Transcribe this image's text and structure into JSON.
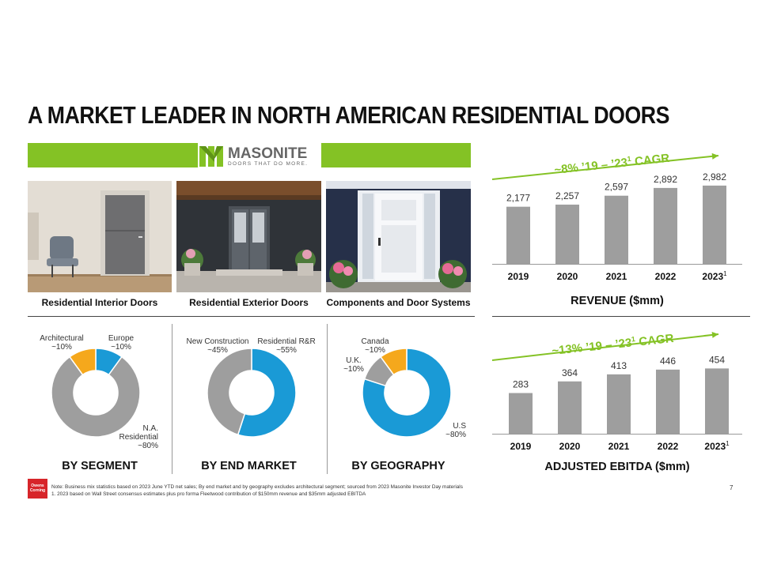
{
  "title": "A MARKET LEADER IN NORTH AMERICAN RESIDENTIAL DOORS",
  "brand": {
    "name": "MASONITE",
    "tagline": "DOORS THAT DO MORE.",
    "accent": "#84c225"
  },
  "products": [
    {
      "label": "Residential Interior Doors"
    },
    {
      "label": "Residential Exterior Doors"
    },
    {
      "label": "Components and Door Systems"
    }
  ],
  "segment": {
    "title": "BY SEGMENT",
    "labels": [
      {
        "name": "Architectural",
        "value": "~10%"
      },
      {
        "name": "Europe",
        "value": "~10%"
      },
      {
        "name": "N.A.",
        "name2": "Residential",
        "value": "~80%"
      }
    ],
    "slices": [
      {
        "value": 10,
        "color": "#1a9ad6"
      },
      {
        "value": 80,
        "color": "#9e9e9e"
      },
      {
        "value": 10,
        "color": "#f5a81c"
      }
    ]
  },
  "end_market": {
    "title": "BY END MARKET",
    "labels": [
      {
        "name": "New Construction",
        "value": "~45%"
      },
      {
        "name": "Residential R&R",
        "value": "~55%"
      }
    ],
    "slices": [
      {
        "value": 55,
        "color": "#1a9ad6"
      },
      {
        "value": 45,
        "color": "#9e9e9e"
      }
    ]
  },
  "geography": {
    "title": "BY GEOGRAPHY",
    "labels": [
      {
        "name": "Canada",
        "value": "~10%"
      },
      {
        "name": "U.K.",
        "value": "~10%"
      },
      {
        "name": "U.S",
        "value": "~80%"
      }
    ],
    "slices": [
      {
        "value": 80,
        "color": "#1a9ad6"
      },
      {
        "value": 10,
        "color": "#9e9e9e"
      },
      {
        "value": 10,
        "color": "#f5a81c"
      }
    ]
  },
  "chart_data": [
    {
      "type": "bar",
      "title": "REVENUE ($mm)",
      "annotation": "~8% ’19 – ’23",
      "annotation_sup": "1",
      "annotation_suffix": " CAGR",
      "categories": [
        "2019",
        "2020",
        "2021",
        "2022",
        "2023"
      ],
      "category_sup": [
        "",
        "",
        "",
        "",
        "1"
      ],
      "values": [
        2177,
        2257,
        2597,
        2892,
        2982
      ],
      "value_labels": [
        "2,177",
        "2,257",
        "2,597",
        "2,892",
        "2,982"
      ],
      "ylim": [
        0,
        3250
      ],
      "bar_color": "#9e9e9e",
      "arrow_color": "#84c225"
    },
    {
      "type": "bar",
      "title": "ADJUSTED EBITDA ($mm)",
      "annotation": "~13% ’19 – ’23",
      "annotation_sup": "1",
      "annotation_suffix": " CAGR",
      "categories": [
        "2019",
        "2020",
        "2021",
        "2022",
        "2023"
      ],
      "category_sup": [
        "",
        "",
        "",
        "",
        "1"
      ],
      "values": [
        283,
        364,
        413,
        446,
        454
      ],
      "value_labels": [
        "283",
        "364",
        "413",
        "446",
        "454"
      ],
      "ylim": [
        0,
        500
      ],
      "bar_color": "#9e9e9e",
      "arrow_color": "#84c225"
    }
  ],
  "footer": {
    "logo_line1": "Owens",
    "logo_line2": "Corning",
    "note1": "Note: Business mix statistics based on 2023 June YTD net sales; By end market and by geography excludes architectural segment; sourced from 2023 Masonite Investor Day materials",
    "note2": "1. 2023 based on Wall Street consensus estimates plus pro forma Fleetwood contribution of $150mm revenue and $35mm adjusted EBITDA",
    "page": "7"
  }
}
